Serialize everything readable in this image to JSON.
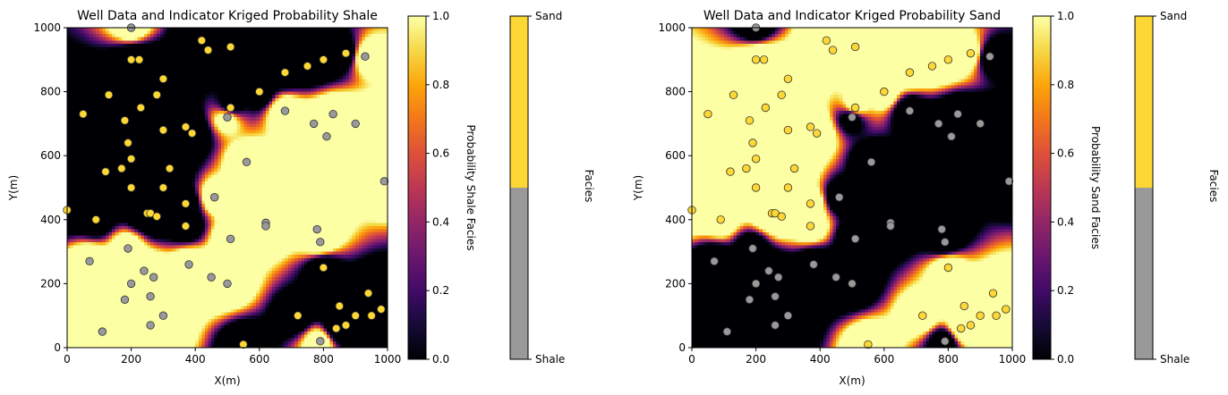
{
  "chart_data": [
    {
      "type": "heatmap",
      "title": "Well Data and Indicator Kriged Probability Shale",
      "xlabel": "X(m)",
      "ylabel": "Y(m)",
      "xlim": [
        0,
        1000
      ],
      "ylim": [
        0,
        1000
      ],
      "xticks": [
        "0",
        "200",
        "400",
        "600",
        "800",
        "1000"
      ],
      "yticks": [
        "0",
        "200",
        "400",
        "600",
        "800",
        "1000"
      ],
      "colorbar": {
        "label": "Probability Shale Facies",
        "range": [
          0,
          1
        ],
        "ticks": [
          "0.0",
          "0.2",
          "0.4",
          "0.6",
          "0.8",
          "1.0"
        ],
        "colormap": "inferno"
      },
      "facies_bar": {
        "label": "Facies",
        "top": "Sand",
        "bottom": "Shale"
      },
      "target_facies": 0
    },
    {
      "type": "heatmap",
      "title": "Well Data and Indicator Kriged Probability Sand",
      "xlabel": "X(m)",
      "ylabel": "Y(m)",
      "xlim": [
        0,
        1000
      ],
      "ylim": [
        0,
        1000
      ],
      "xticks": [
        "0",
        "200",
        "400",
        "600",
        "800",
        "1000"
      ],
      "yticks": [
        "0",
        "200",
        "400",
        "600",
        "800",
        "1000"
      ],
      "colorbar": {
        "label": "Probability Sand Facies",
        "range": [
          0,
          1
        ],
        "ticks": [
          "0.0",
          "0.2",
          "0.4",
          "0.6",
          "0.8",
          "1.0"
        ],
        "colormap": "inferno"
      },
      "facies_bar": {
        "label": "Facies",
        "top": "Sand",
        "bottom": "Shale"
      },
      "target_facies": 1
    }
  ],
  "wells": {
    "columns": [
      "x",
      "y",
      "facies"
    ],
    "facies_colors": {
      "sand": "#fdd835",
      "shale": "#999999"
    },
    "points": [
      [
        200,
        1000,
        0
      ],
      [
        200,
        900,
        1
      ],
      [
        225,
        900,
        1
      ],
      [
        130,
        790,
        1
      ],
      [
        50,
        730,
        1
      ],
      [
        230,
        750,
        1
      ],
      [
        180,
        710,
        1
      ],
      [
        280,
        790,
        1
      ],
      [
        300,
        840,
        1
      ],
      [
        190,
        640,
        1
      ],
      [
        300,
        680,
        1
      ],
      [
        200,
        590,
        1
      ],
      [
        120,
        550,
        1
      ],
      [
        170,
        560,
        1
      ],
      [
        320,
        560,
        1
      ],
      [
        200,
        500,
        1
      ],
      [
        300,
        500,
        1
      ],
      [
        90,
        400,
        1
      ],
      [
        0,
        430,
        1
      ],
      [
        250,
        420,
        1
      ],
      [
        260,
        420,
        1
      ],
      [
        280,
        410,
        1
      ],
      [
        370,
        690,
        1
      ],
      [
        390,
        670,
        1
      ],
      [
        370,
        450,
        1
      ],
      [
        370,
        380,
        1
      ],
      [
        420,
        960,
        1
      ],
      [
        440,
        930,
        1
      ],
      [
        510,
        940,
        1
      ],
      [
        510,
        750,
        1
      ],
      [
        500,
        720,
        0
      ],
      [
        600,
        800,
        1
      ],
      [
        680,
        860,
        1
      ],
      [
        750,
        880,
        1
      ],
      [
        800,
        900,
        1
      ],
      [
        870,
        920,
        1
      ],
      [
        680,
        740,
        0
      ],
      [
        930,
        910,
        0
      ],
      [
        770,
        700,
        0
      ],
      [
        810,
        660,
        0
      ],
      [
        830,
        730,
        0
      ],
      [
        900,
        700,
        0
      ],
      [
        560,
        580,
        0
      ],
      [
        460,
        470,
        0
      ],
      [
        990,
        520,
        0
      ],
      [
        620,
        390,
        0
      ],
      [
        620,
        380,
        0
      ],
      [
        510,
        340,
        0
      ],
      [
        780,
        370,
        0
      ],
      [
        790,
        330,
        0
      ],
      [
        70,
        270,
        0
      ],
      [
        190,
        310,
        0
      ],
      [
        240,
        240,
        0
      ],
      [
        200,
        200,
        0
      ],
      [
        270,
        220,
        0
      ],
      [
        180,
        150,
        0
      ],
      [
        260,
        160,
        0
      ],
      [
        380,
        260,
        0
      ],
      [
        450,
        220,
        0
      ],
      [
        500,
        200,
        0
      ],
      [
        300,
        100,
        0
      ],
      [
        260,
        70,
        0
      ],
      [
        110,
        50,
        0
      ],
      [
        800,
        250,
        1
      ],
      [
        720,
        100,
        1
      ],
      [
        850,
        130,
        1
      ],
      [
        900,
        100,
        1
      ],
      [
        950,
        100,
        1
      ],
      [
        940,
        170,
        1
      ],
      [
        980,
        120,
        1
      ],
      [
        840,
        60,
        1
      ],
      [
        870,
        70,
        1
      ],
      [
        550,
        10,
        1
      ],
      [
        790,
        20,
        0
      ]
    ]
  }
}
